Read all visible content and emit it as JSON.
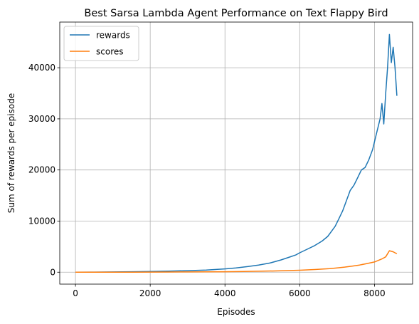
{
  "chart_data": {
    "type": "line",
    "title": "Best Sarsa Lambda Agent Performance on Text Flappy Bird",
    "xlabel": "Episodes",
    "ylabel": "Sum of rewards per episode",
    "xlim": [
      -420,
      9020
    ],
    "ylim": [
      -2330,
      48930
    ],
    "xticks": [
      0,
      2000,
      4000,
      6000,
      8000
    ],
    "yticks": [
      0,
      10000,
      20000,
      30000,
      40000
    ],
    "grid": true,
    "legend": "top-left",
    "series": [
      {
        "name": "rewards",
        "color": "#1f77b4",
        "x": [
          0,
          500,
          1000,
          1500,
          2000,
          2500,
          3000,
          3500,
          3800,
          4000,
          4300,
          4600,
          4900,
          5200,
          5500,
          5700,
          5900,
          6000,
          6200,
          6400,
          6600,
          6750,
          6850,
          6950,
          7050,
          7150,
          7250,
          7350,
          7450,
          7550,
          7650,
          7750,
          7850,
          7950,
          8050,
          8150,
          8200,
          8250,
          8300,
          8350,
          8400,
          8450,
          8500,
          8550,
          8600
        ],
        "y": [
          0,
          20,
          50,
          100,
          150,
          220,
          300,
          420,
          550,
          650,
          850,
          1100,
          1400,
          1800,
          2400,
          2900,
          3400,
          3800,
          4500,
          5200,
          6100,
          7000,
          8000,
          9000,
          10500,
          12000,
          14000,
          16000,
          17000,
          18500,
          20000,
          20500,
          22000,
          24000,
          27000,
          30000,
          33000,
          29000,
          35000,
          40000,
          46500,
          41000,
          44000,
          40000,
          34500
        ]
      },
      {
        "name": "scores",
        "color": "#ff7f0e",
        "x": [
          0,
          500,
          1000,
          1500,
          2000,
          2500,
          3000,
          3500,
          4000,
          4500,
          5000,
          5500,
          6000,
          6400,
          6800,
          7000,
          7200,
          7400,
          7600,
          7800,
          8000,
          8200,
          8300,
          8400,
          8500,
          8600
        ],
        "y": [
          0,
          5,
          10,
          15,
          25,
          35,
          50,
          70,
          100,
          140,
          200,
          280,
          380,
          520,
          700,
          850,
          1000,
          1200,
          1400,
          1700,
          2000,
          2600,
          3000,
          4200,
          4000,
          3600
        ]
      }
    ]
  }
}
